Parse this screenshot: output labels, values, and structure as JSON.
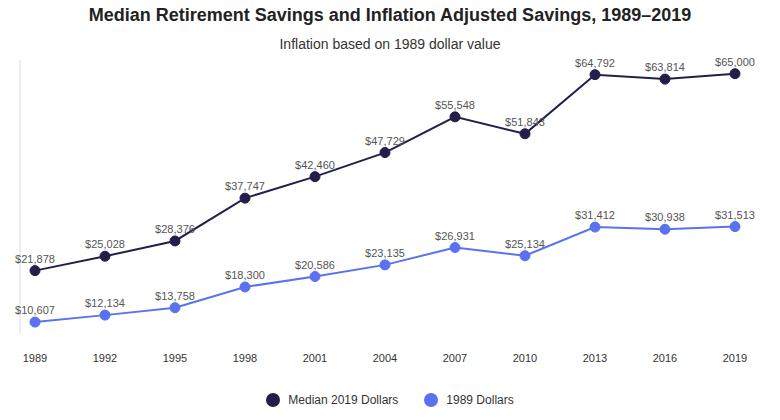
{
  "chart_data": {
    "type": "line",
    "title": "Median Retirement Savings and Inflation Adjusted Savings, 1989–2019",
    "subtitle": "Inflation based on 1989 dollar value",
    "categories": [
      "1989",
      "1992",
      "1995",
      "1998",
      "2001",
      "2004",
      "2007",
      "2010",
      "2013",
      "2016",
      "2019"
    ],
    "series": [
      {
        "name": "Median 2019 Dollars",
        "color": "#241f4a",
        "marker": "circle",
        "values": [
          21878,
          25028,
          28376,
          37747,
          42460,
          47729,
          55548,
          51843,
          64792,
          63814,
          65000
        ],
        "value_labels": [
          "$21,878",
          "$25,028",
          "$28,376",
          "$37,747",
          "$42,460",
          "$47,729",
          "$55,548",
          "$51,843",
          "$64,792",
          "$63,814",
          "$65,000"
        ]
      },
      {
        "name": "1989 Dollars",
        "color": "#5a72f0",
        "marker": "circle",
        "values": [
          10607,
          12134,
          13758,
          18300,
          20586,
          23135,
          26931,
          25134,
          31412,
          30938,
          31513
        ],
        "value_labels": [
          "$10,607",
          "$12,134",
          "$13,758",
          "$18,300",
          "$20,586",
          "$23,135",
          "$26,931",
          "$25,134",
          "$31,412",
          "$30,938",
          "$31,513"
        ]
      }
    ],
    "ylim": [
      8000,
      68000
    ],
    "tick_labels": "x",
    "data_labels": true,
    "legend": "bottom",
    "grid": false
  }
}
